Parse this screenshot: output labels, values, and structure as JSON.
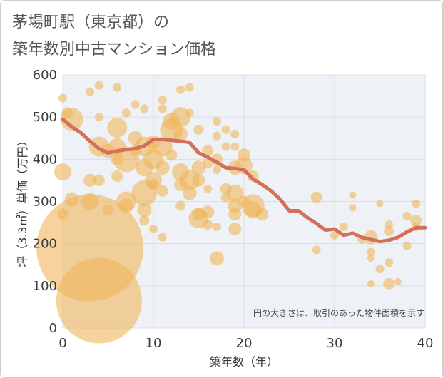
{
  "title_line1": "茅場町駅（東京都）の",
  "title_line2": "築年数別中古マンション価格",
  "chart_data": {
    "type": "scatter",
    "xlabel": "築年数（年）",
    "ylabel": "坪（3.3㎡）単価（万円）",
    "xlim": [
      0,
      40
    ],
    "ylim": [
      0,
      600
    ],
    "x_ticks": [
      "0",
      "10",
      "20",
      "30",
      "40"
    ],
    "y_ticks": [
      "0",
      "100",
      "200",
      "300",
      "400",
      "500",
      "600"
    ],
    "grid": true,
    "note": "円の大きさは、取引のあった物件面積を示す",
    "colors": {
      "bubble": "#f0b55a",
      "trend": "#d4705a",
      "grid": "#d9dee8",
      "plot_bg": "#eef2f7"
    },
    "bubbles": [
      {
        "x": 0,
        "y": 545,
        "s": 6
      },
      {
        "x": 0.5,
        "y": 510,
        "s": 8
      },
      {
        "x": 1,
        "y": 495,
        "s": 16
      },
      {
        "x": 0,
        "y": 370,
        "s": 12
      },
      {
        "x": 1,
        "y": 305,
        "s": 10
      },
      {
        "x": 0,
        "y": 270,
        "s": 8
      },
      {
        "x": 3,
        "y": 190,
        "s": 75
      },
      {
        "x": 4,
        "y": 65,
        "s": 60
      },
      {
        "x": 3,
        "y": 350,
        "s": 9
      },
      {
        "x": 3,
        "y": 300,
        "s": 12
      },
      {
        "x": 4,
        "y": 350,
        "s": 8
      },
      {
        "x": 3,
        "y": 560,
        "s": 6
      },
      {
        "x": 4,
        "y": 575,
        "s": 6
      },
      {
        "x": 4,
        "y": 500,
        "s": 6
      },
      {
        "x": 4,
        "y": 430,
        "s": 14
      },
      {
        "x": 5,
        "y": 420,
        "s": 10
      },
      {
        "x": 5,
        "y": 280,
        "s": 8
      },
      {
        "x": 6,
        "y": 570,
        "s": 6
      },
      {
        "x": 6,
        "y": 475,
        "s": 14
      },
      {
        "x": 6,
        "y": 430,
        "s": 12
      },
      {
        "x": 6,
        "y": 400,
        "s": 9
      },
      {
        "x": 6,
        "y": 360,
        "s": 8
      },
      {
        "x": 7,
        "y": 510,
        "s": 6
      },
      {
        "x": 7,
        "y": 400,
        "s": 18
      },
      {
        "x": 7,
        "y": 300,
        "s": 14
      },
      {
        "x": 7,
        "y": 290,
        "s": 10
      },
      {
        "x": 8,
        "y": 530,
        "s": 6
      },
      {
        "x": 8,
        "y": 450,
        "s": 10
      },
      {
        "x": 8,
        "y": 420,
        "s": 8
      },
      {
        "x": 9,
        "y": 520,
        "s": 6
      },
      {
        "x": 9,
        "y": 430,
        "s": 14
      },
      {
        "x": 9,
        "y": 380,
        "s": 12
      },
      {
        "x": 9,
        "y": 320,
        "s": 18
      },
      {
        "x": 9,
        "y": 280,
        "s": 10
      },
      {
        "x": 9,
        "y": 255,
        "s": 7
      },
      {
        "x": 10,
        "y": 440,
        "s": 10
      },
      {
        "x": 10,
        "y": 400,
        "s": 14
      },
      {
        "x": 10,
        "y": 350,
        "s": 12
      },
      {
        "x": 10,
        "y": 340,
        "s": 8
      },
      {
        "x": 10,
        "y": 235,
        "s": 6
      },
      {
        "x": 11,
        "y": 540,
        "s": 6
      },
      {
        "x": 11,
        "y": 520,
        "s": 6
      },
      {
        "x": 11,
        "y": 430,
        "s": 14
      },
      {
        "x": 11,
        "y": 380,
        "s": 10
      },
      {
        "x": 11,
        "y": 325,
        "s": 8
      },
      {
        "x": 11,
        "y": 215,
        "s": 6
      },
      {
        "x": 12,
        "y": 490,
        "s": 12
      },
      {
        "x": 12,
        "y": 470,
        "s": 16
      },
      {
        "x": 12,
        "y": 410,
        "s": 8
      },
      {
        "x": 13,
        "y": 565,
        "s": 6
      },
      {
        "x": 13,
        "y": 500,
        "s": 14
      },
      {
        "x": 13,
        "y": 460,
        "s": 10
      },
      {
        "x": 13,
        "y": 370,
        "s": 12
      },
      {
        "x": 13,
        "y": 340,
        "s": 9
      },
      {
        "x": 13,
        "y": 290,
        "s": 7
      },
      {
        "x": 14,
        "y": 570,
        "s": 6
      },
      {
        "x": 14,
        "y": 510,
        "s": 6
      },
      {
        "x": 14,
        "y": 350,
        "s": 14
      },
      {
        "x": 14,
        "y": 320,
        "s": 10
      },
      {
        "x": 15,
        "y": 470,
        "s": 7
      },
      {
        "x": 15,
        "y": 380,
        "s": 10
      },
      {
        "x": 15,
        "y": 350,
        "s": 9
      },
      {
        "x": 15,
        "y": 270,
        "s": 9
      },
      {
        "x": 15,
        "y": 260,
        "s": 14
      },
      {
        "x": 16,
        "y": 420,
        "s": 8
      },
      {
        "x": 16,
        "y": 390,
        "s": 7
      },
      {
        "x": 16,
        "y": 330,
        "s": 6
      },
      {
        "x": 16,
        "y": 275,
        "s": 9
      },
      {
        "x": 16,
        "y": 245,
        "s": 7
      },
      {
        "x": 17,
        "y": 490,
        "s": 6
      },
      {
        "x": 17,
        "y": 455,
        "s": 6
      },
      {
        "x": 17,
        "y": 400,
        "s": 8
      },
      {
        "x": 17,
        "y": 375,
        "s": 6
      },
      {
        "x": 17,
        "y": 240,
        "s": 6
      },
      {
        "x": 17,
        "y": 165,
        "s": 10
      },
      {
        "x": 18,
        "y": 470,
        "s": 6
      },
      {
        "x": 18,
        "y": 430,
        "s": 6
      },
      {
        "x": 18,
        "y": 330,
        "s": 8
      },
      {
        "x": 18,
        "y": 310,
        "s": 7
      },
      {
        "x": 19,
        "y": 460,
        "s": 6
      },
      {
        "x": 19,
        "y": 430,
        "s": 6
      },
      {
        "x": 19,
        "y": 380,
        "s": 10
      },
      {
        "x": 19,
        "y": 320,
        "s": 12
      },
      {
        "x": 19,
        "y": 290,
        "s": 10
      },
      {
        "x": 19,
        "y": 270,
        "s": 9
      },
      {
        "x": 19,
        "y": 235,
        "s": 9
      },
      {
        "x": 20,
        "y": 410,
        "s": 9
      },
      {
        "x": 20,
        "y": 385,
        "s": 12
      },
      {
        "x": 20,
        "y": 300,
        "s": 8
      },
      {
        "x": 21,
        "y": 360,
        "s": 8
      },
      {
        "x": 21,
        "y": 290,
        "s": 16
      },
      {
        "x": 21,
        "y": 280,
        "s": 12
      },
      {
        "x": 22,
        "y": 270,
        "s": 9
      },
      {
        "x": 28,
        "y": 310,
        "s": 8
      },
      {
        "x": 28,
        "y": 185,
        "s": 6
      },
      {
        "x": 30,
        "y": 220,
        "s": 6
      },
      {
        "x": 31,
        "y": 240,
        "s": 6
      },
      {
        "x": 32,
        "y": 315,
        "s": 5
      },
      {
        "x": 32,
        "y": 285,
        "s": 5
      },
      {
        "x": 33,
        "y": 210,
        "s": 6
      },
      {
        "x": 34,
        "y": 215,
        "s": 10
      },
      {
        "x": 34,
        "y": 180,
        "s": 6
      },
      {
        "x": 34,
        "y": 165,
        "s": 5
      },
      {
        "x": 34,
        "y": 105,
        "s": 5
      },
      {
        "x": 35,
        "y": 295,
        "s": 5
      },
      {
        "x": 35,
        "y": 140,
        "s": 6
      },
      {
        "x": 36,
        "y": 245,
        "s": 6
      },
      {
        "x": 36,
        "y": 230,
        "s": 7
      },
      {
        "x": 36,
        "y": 155,
        "s": 6
      },
      {
        "x": 36,
        "y": 105,
        "s": 8
      },
      {
        "x": 37,
        "y": 110,
        "s": 5
      },
      {
        "x": 38,
        "y": 265,
        "s": 6
      },
      {
        "x": 38,
        "y": 195,
        "s": 6
      },
      {
        "x": 39,
        "y": 295,
        "s": 6
      },
      {
        "x": 39,
        "y": 255,
        "s": 8
      },
      {
        "x": 39,
        "y": 240,
        "s": 6
      }
    ],
    "trend": {
      "x": [
        0,
        1,
        2,
        3,
        4,
        5,
        6,
        7,
        8,
        9,
        10,
        11,
        12,
        13,
        14,
        15,
        16,
        17,
        18,
        19,
        20,
        21,
        22,
        23,
        24,
        25,
        26,
        27,
        28,
        29,
        30,
        31,
        32,
        33,
        34,
        35,
        36,
        37,
        38,
        39,
        40
      ],
      "y": [
        495,
        477,
        463,
        443,
        425,
        415,
        420,
        423,
        425,
        432,
        447,
        447,
        445,
        443,
        440,
        415,
        405,
        393,
        380,
        378,
        375,
        353,
        340,
        325,
        305,
        278,
        278,
        262,
        248,
        232,
        235,
        220,
        225,
        215,
        210,
        205,
        208,
        215,
        228,
        238,
        238
      ]
    }
  }
}
